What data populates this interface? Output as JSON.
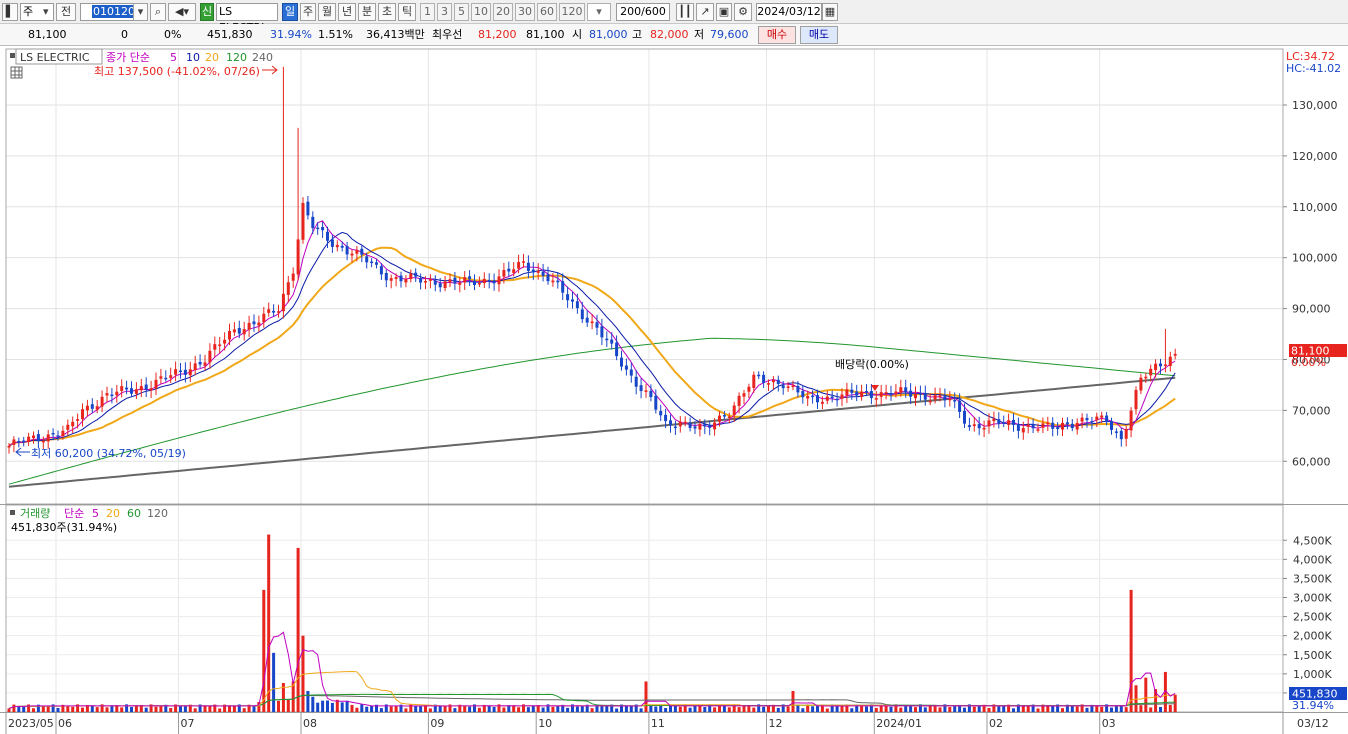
{
  "toolbar": {
    "market": "주",
    "period_sel": "전",
    "code": "010120",
    "name_short": "LS ELECTRI",
    "badge": "신",
    "periods": [
      "일",
      "주",
      "월",
      "년",
      "분",
      "초",
      "틱"
    ],
    "active_period": "일",
    "nums": [
      "1",
      "3",
      "5",
      "10",
      "20",
      "30",
      "60",
      "120"
    ],
    "count": "200/600",
    "date": "2024/03/12"
  },
  "quote": {
    "price": "81,100",
    "change": "0",
    "change_pct": "0%",
    "volume": "451,830",
    "volume_ratio": "31.94%",
    "turnover_pct": "1.51%",
    "amount": "36,413백만",
    "best_label": "최우선",
    "best_ask": "81,200",
    "best_bid": "81,100",
    "open_label": "시",
    "open": "81,000",
    "high_label": "고",
    "high": "82,000",
    "low_label": "저",
    "low": "79,600",
    "buy_label": "매수",
    "sell_label": "매도"
  },
  "price_panel": {
    "stock_label": "LS ELECTRIC",
    "legend": {
      "close_label": "종가 단순",
      "ma5": "5",
      "ma10": "10",
      "ma20": "20",
      "ma120": "120",
      "ma240": "240"
    },
    "high_note": "최고 137,500 (-41.02%, 07/26)",
    "low_note": "최저 60,200 (34.72%, 05/19)",
    "dividend_note": "배당락(0.00%)",
    "lc": "LC:34.72",
    "hc": "HC:-41.02",
    "current_tag": "81,100",
    "current_pct": "0.00%",
    "y_ticks": [
      "130,000",
      "120,000",
      "110,000",
      "100,000",
      "90,000",
      "80,000",
      "70,000",
      "60,000"
    ]
  },
  "volume_panel": {
    "legend": {
      "label": "거래량",
      "simple": "단순",
      "v5": "5",
      "v20": "20",
      "v60": "60",
      "v120": "120"
    },
    "current_note": "451,830주(31.94%)",
    "current_tag": "451,830",
    "current_pct": "31.94%",
    "y_ticks": [
      "4,500K",
      "4,000K",
      "3,500K",
      "3,000K",
      "2,500K",
      "2,000K",
      "1,500K",
      "1,000K",
      "500K"
    ]
  },
  "x_ticks": [
    "2023/05",
    "06",
    "07",
    "08",
    "09",
    "10",
    "11",
    "12",
    "2024/01",
    "02",
    "03"
  ],
  "x_end": "03/12",
  "colors": {
    "up": "#e8241e",
    "down": "#1846c8",
    "ma5": "#c000c0",
    "ma10": "#0a1aa8",
    "ma20": "#f0a818",
    "ma120": "#21962e",
    "ma240": "#666666",
    "tagred": "#e8241e"
  },
  "chart_data": {
    "type": "candlestick",
    "ylim": [
      52000,
      141000
    ],
    "keypoints": [
      [
        0,
        63000
      ],
      [
        5,
        64500
      ],
      [
        12,
        66000
      ],
      [
        15,
        70000
      ],
      [
        20,
        73000
      ],
      [
        25,
        74000
      ],
      [
        30,
        75500
      ],
      [
        36,
        78000
      ],
      [
        40,
        80000
      ],
      [
        46,
        86000
      ],
      [
        50,
        87000
      ],
      [
        55,
        90000
      ],
      [
        58,
        98000
      ],
      [
        60,
        110000
      ],
      [
        62,
        106000
      ],
      [
        66,
        103000
      ],
      [
        72,
        100000
      ],
      [
        78,
        96000
      ],
      [
        85,
        95500
      ],
      [
        92,
        95000
      ],
      [
        100,
        96000
      ],
      [
        105,
        99000
      ],
      [
        110,
        96000
      ],
      [
        114,
        92000
      ],
      [
        120,
        86000
      ],
      [
        126,
        78000
      ],
      [
        131,
        72000
      ],
      [
        134,
        67000
      ],
      [
        137,
        68000
      ],
      [
        142,
        66000
      ],
      [
        147,
        70000
      ],
      [
        152,
        76000
      ],
      [
        158,
        75500
      ],
      [
        163,
        72000
      ],
      [
        170,
        73000
      ],
      [
        180,
        73500
      ],
      [
        187,
        73000
      ],
      [
        192,
        72000
      ],
      [
        196,
        67000
      ],
      [
        201,
        67500
      ],
      [
        207,
        67000
      ],
      [
        213,
        66500
      ],
      [
        218,
        68000
      ],
      [
        224,
        68000
      ],
      [
        227,
        64500
      ],
      [
        231,
        76000
      ],
      [
        236,
        80000
      ],
      [
        238,
        81100
      ]
    ],
    "volume_k": {
      "base": 90,
      "spikes": [
        [
          52,
          3200
        ],
        [
          53,
          4650
        ],
        [
          54,
          1550
        ],
        [
          56,
          760
        ],
        [
          58,
          800
        ],
        [
          59,
          4300
        ],
        [
          60,
          2000
        ],
        [
          61,
          550
        ],
        [
          62,
          400
        ],
        [
          130,
          800
        ],
        [
          160,
          550
        ],
        [
          229,
          3200
        ],
        [
          230,
          700
        ],
        [
          232,
          900
        ],
        [
          234,
          600
        ],
        [
          236,
          1050
        ],
        [
          238,
          452
        ]
      ]
    },
    "volume_ylim": [
      0,
      4900
    ]
  }
}
